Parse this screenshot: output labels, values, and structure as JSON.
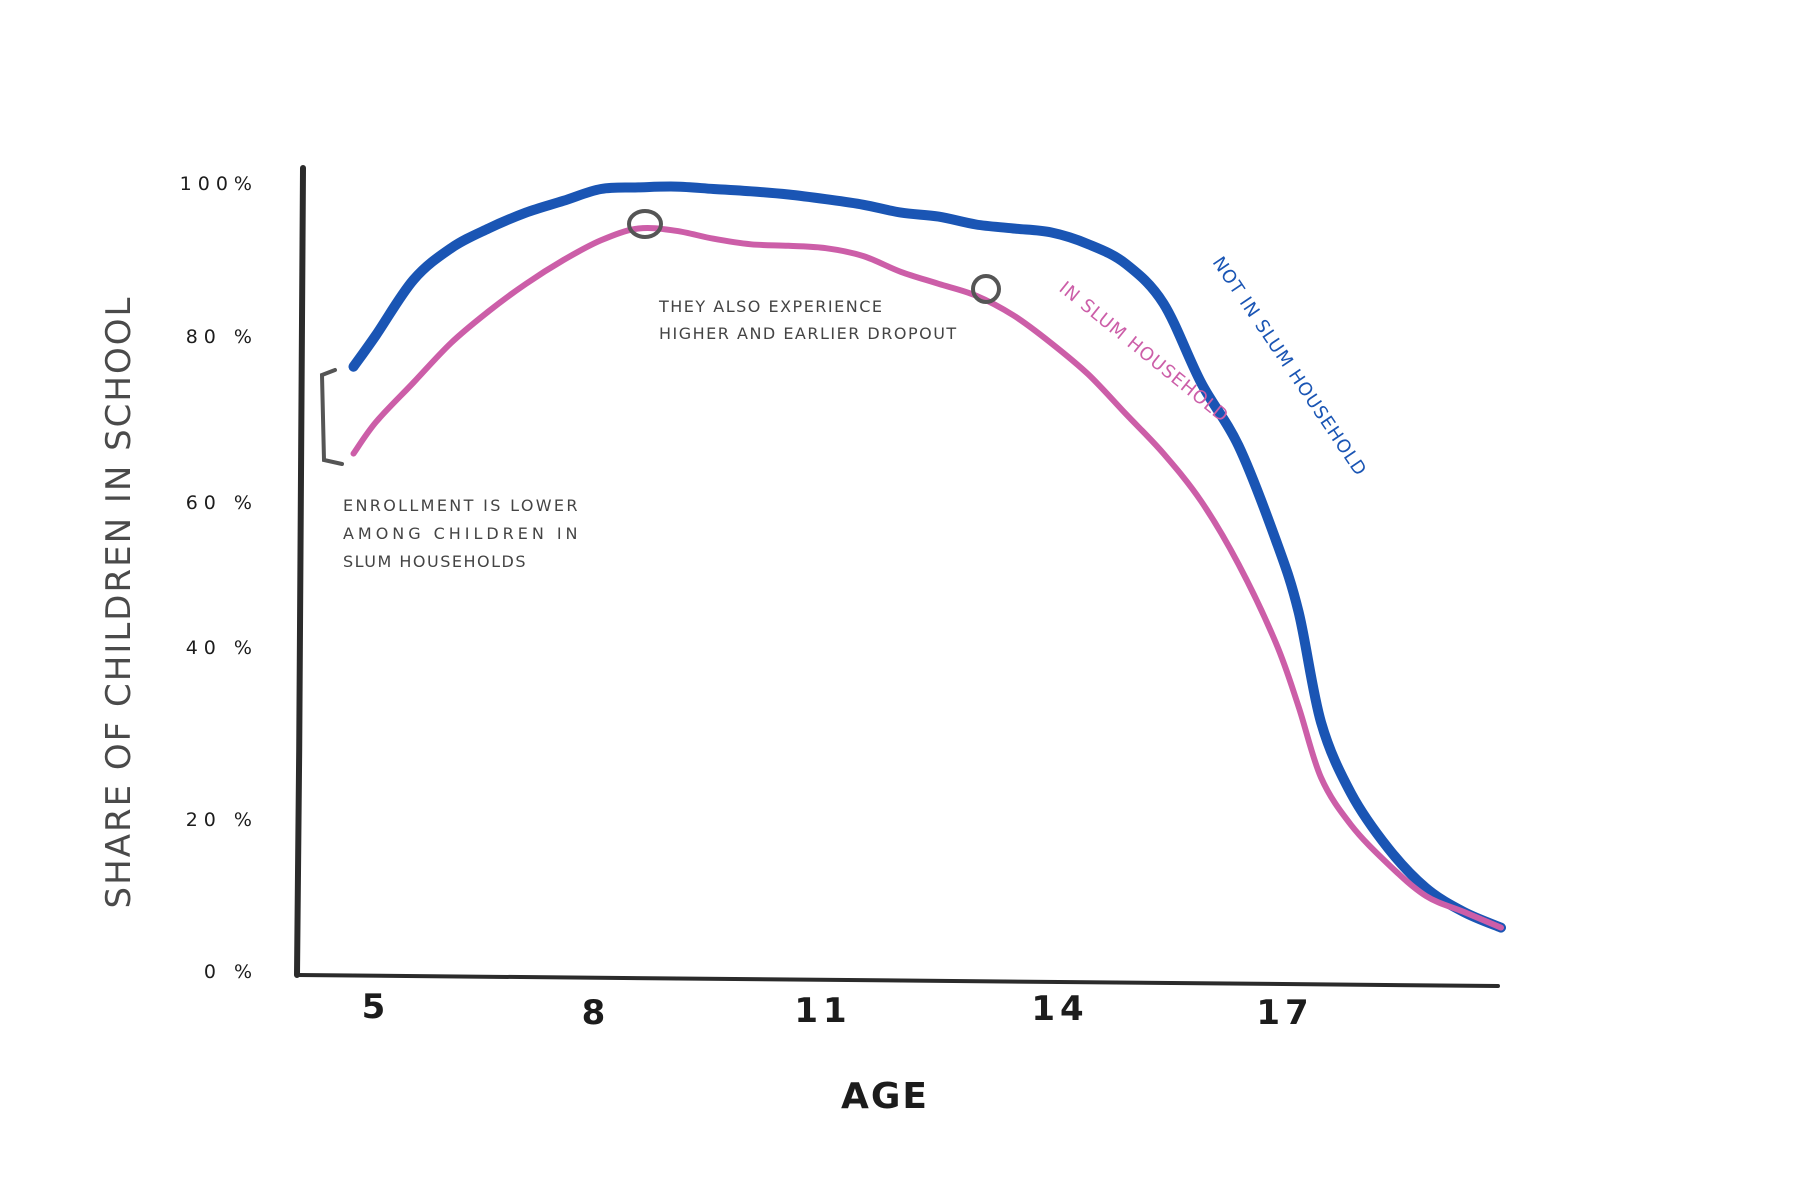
{
  "chart_data": {
    "type": "line",
    "title": "",
    "xlabel": "AGE",
    "ylabel": "SHARE OF CHILDREN IN SCHOOL",
    "x_ticks": [
      "5",
      "8",
      "11",
      "14",
      "17"
    ],
    "y_ticks": [
      "0 %",
      "20 %",
      "40 %",
      "60 %",
      "80 %",
      "100%"
    ],
    "xlim": [
      4,
      20
    ],
    "ylim": [
      0,
      100
    ],
    "grid": false,
    "legend": "none",
    "series": [
      {
        "name": "NOT IN SLUM HOUSEHOLD",
        "color": "#1a55b4",
        "x": [
          4.7,
          5.0,
          5.5,
          6.0,
          6.5,
          7.0,
          7.5,
          8.0,
          8.5,
          9.0,
          9.5,
          10.0,
          10.5,
          11.0,
          11.5,
          12.0,
          12.5,
          13.0,
          13.5,
          14.0,
          14.5,
          15.0,
          15.5,
          16.0,
          16.5,
          17.0,
          17.3,
          17.6,
          18.0,
          18.5,
          19.0,
          19.5,
          20.0
        ],
        "y": [
          77,
          81,
          88,
          92,
          94.5,
          96.5,
          98,
          99.5,
          99.7,
          99.8,
          99.5,
          99.2,
          98.8,
          98.2,
          97.5,
          96.5,
          96,
          95,
          94.5,
          94,
          92.5,
          90,
          85,
          75,
          67,
          55,
          46,
          32,
          23,
          16,
          11,
          8,
          6
        ]
      },
      {
        "name": "IN SLUM HOUSEHOLD",
        "color": "#cc5ea8",
        "x": [
          4.7,
          5.0,
          5.5,
          6.0,
          6.5,
          7.0,
          7.5,
          8.0,
          8.5,
          9.0,
          9.5,
          10.0,
          10.5,
          11.0,
          11.5,
          12.0,
          12.5,
          13.0,
          13.5,
          14.0,
          14.5,
          15.0,
          15.5,
          16.0,
          16.5,
          17.0,
          17.3,
          17.6,
          18.0,
          18.5,
          19.0,
          19.5,
          20.0
        ],
        "y": [
          66,
          70,
          75,
          80,
          84,
          87.5,
          90.5,
          93,
          94.5,
          94.2,
          93.2,
          92.5,
          92.3,
          92,
          91,
          89,
          87.5,
          86,
          83.5,
          80,
          76,
          71,
          66,
          60,
          52,
          42,
          34,
          25,
          19,
          14,
          10,
          8,
          6
        ]
      }
    ],
    "annotations": [
      {
        "id": "enrollment",
        "text_lines": [
          "ENROLLMENT  IS  LOWER",
          "AMONG  CHILDREN  IN",
          "SLUM HOUSEHOLDS"
        ]
      },
      {
        "id": "dropout",
        "text_lines": [
          "THEY ALSO EXPERIENCE",
          "HIGHER AND EARLIER DROPOUT"
        ]
      }
    ]
  }
}
